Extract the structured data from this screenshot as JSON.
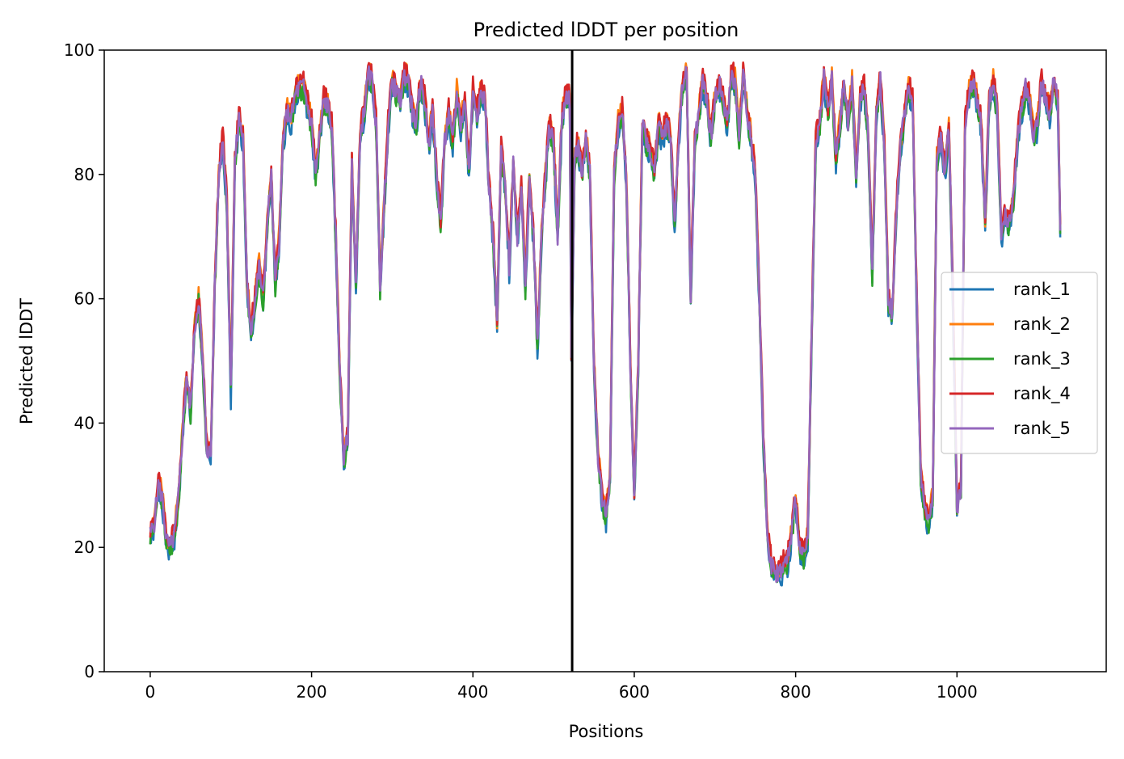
{
  "chart_data": {
    "type": "line",
    "title": "Predicted lDDT per position",
    "xlabel": "Positions",
    "ylabel": "Predicted lDDT",
    "xlim": [
      -57,
      1185
    ],
    "ylim": [
      0,
      100
    ],
    "xticks": [
      0,
      200,
      400,
      600,
      800,
      1000
    ],
    "yticks": [
      0,
      20,
      40,
      60,
      80,
      100
    ],
    "grid": false,
    "legend_position": "center-right",
    "vline_x": 523,
    "vline_color": "#000000",
    "series_style": "line",
    "series": [
      {
        "name": "rank_1",
        "color": "#1f77b4",
        "offset": -1.2,
        "seed": 1
      },
      {
        "name": "rank_2",
        "color": "#ff7f0e",
        "offset": 0.8,
        "seed": 2
      },
      {
        "name": "rank_3",
        "color": "#2ca02c",
        "offset": -0.6,
        "seed": 3
      },
      {
        "name": "rank_4",
        "color": "#d62728",
        "offset": 1.0,
        "seed": 4
      },
      {
        "name": "rank_5",
        "color": "#9467bd",
        "offset": 0.0,
        "seed": 5
      }
    ],
    "base_profile": [
      [
        0,
        22
      ],
      [
        5,
        24
      ],
      [
        10,
        30
      ],
      [
        15,
        28
      ],
      [
        20,
        21
      ],
      [
        25,
        20
      ],
      [
        30,
        22
      ],
      [
        35,
        28
      ],
      [
        40,
        38
      ],
      [
        45,
        48
      ],
      [
        50,
        42
      ],
      [
        55,
        55
      ],
      [
        60,
        60
      ],
      [
        65,
        50
      ],
      [
        70,
        36
      ],
      [
        75,
        35
      ],
      [
        80,
        62
      ],
      [
        85,
        80
      ],
      [
        90,
        86
      ],
      [
        95,
        75
      ],
      [
        100,
        45
      ],
      [
        105,
        82
      ],
      [
        110,
        89
      ],
      [
        115,
        86
      ],
      [
        120,
        62
      ],
      [
        125,
        55
      ],
      [
        130,
        60
      ],
      [
        135,
        65
      ],
      [
        140,
        60
      ],
      [
        145,
        72
      ],
      [
        150,
        80
      ],
      [
        155,
        62
      ],
      [
        160,
        70
      ],
      [
        165,
        86
      ],
      [
        170,
        90
      ],
      [
        175,
        89
      ],
      [
        180,
        93
      ],
      [
        185,
        94
      ],
      [
        190,
        94
      ],
      [
        195,
        91
      ],
      [
        200,
        88
      ],
      [
        205,
        80
      ],
      [
        210,
        86
      ],
      [
        215,
        92
      ],
      [
        220,
        91
      ],
      [
        225,
        88
      ],
      [
        230,
        70
      ],
      [
        235,
        48
      ],
      [
        240,
        34
      ],
      [
        245,
        38
      ],
      [
        250,
        82
      ],
      [
        255,
        62
      ],
      [
        260,
        86
      ],
      [
        265,
        90
      ],
      [
        270,
        96
      ],
      [
        275,
        95
      ],
      [
        280,
        88
      ],
      [
        285,
        62
      ],
      [
        290,
        75
      ],
      [
        295,
        88
      ],
      [
        300,
        95
      ],
      [
        305,
        93
      ],
      [
        310,
        92
      ],
      [
        315,
        96
      ],
      [
        320,
        95
      ],
      [
        325,
        90
      ],
      [
        330,
        88
      ],
      [
        335,
        95
      ],
      [
        340,
        92
      ],
      [
        345,
        85
      ],
      [
        350,
        90
      ],
      [
        355,
        80
      ],
      [
        360,
        72
      ],
      [
        365,
        85
      ],
      [
        370,
        90
      ],
      [
        375,
        85
      ],
      [
        380,
        93
      ],
      [
        385,
        88
      ],
      [
        390,
        92
      ],
      [
        395,
        80
      ],
      [
        400,
        94
      ],
      [
        405,
        90
      ],
      [
        410,
        93
      ],
      [
        415,
        92
      ],
      [
        420,
        78
      ],
      [
        425,
        70
      ],
      [
        430,
        56
      ],
      [
        435,
        84
      ],
      [
        440,
        78
      ],
      [
        445,
        65
      ],
      [
        450,
        82
      ],
      [
        455,
        70
      ],
      [
        460,
        78
      ],
      [
        465,
        62
      ],
      [
        470,
        80
      ],
      [
        475,
        70
      ],
      [
        480,
        52
      ],
      [
        485,
        70
      ],
      [
        490,
        80
      ],
      [
        495,
        88
      ],
      [
        500,
        85
      ],
      [
        505,
        70
      ],
      [
        510,
        88
      ],
      [
        515,
        93
      ],
      [
        520,
        92
      ],
      [
        522,
        50
      ],
      [
        526,
        82
      ],
      [
        530,
        85
      ],
      [
        535,
        80
      ],
      [
        540,
        86
      ],
      [
        545,
        80
      ],
      [
        550,
        50
      ],
      [
        555,
        35
      ],
      [
        560,
        28
      ],
      [
        565,
        25
      ],
      [
        570,
        32
      ],
      [
        575,
        80
      ],
      [
        580,
        88
      ],
      [
        585,
        90
      ],
      [
        590,
        80
      ],
      [
        595,
        50
      ],
      [
        600,
        28
      ],
      [
        605,
        50
      ],
      [
        610,
        88
      ],
      [
        615,
        85
      ],
      [
        620,
        84
      ],
      [
        625,
        80
      ],
      [
        630,
        88
      ],
      [
        635,
        86
      ],
      [
        640,
        88
      ],
      [
        645,
        86
      ],
      [
        650,
        72
      ],
      [
        655,
        86
      ],
      [
        660,
        95
      ],
      [
        665,
        96
      ],
      [
        670,
        60
      ],
      [
        675,
        85
      ],
      [
        680,
        90
      ],
      [
        685,
        95
      ],
      [
        690,
        92
      ],
      [
        695,
        86
      ],
      [
        700,
        92
      ],
      [
        705,
        95
      ],
      [
        710,
        92
      ],
      [
        715,
        88
      ],
      [
        720,
        96
      ],
      [
        725,
        95
      ],
      [
        730,
        86
      ],
      [
        735,
        96
      ],
      [
        740,
        90
      ],
      [
        745,
        86
      ],
      [
        750,
        80
      ],
      [
        755,
        60
      ],
      [
        760,
        38
      ],
      [
        765,
        22
      ],
      [
        770,
        17
      ],
      [
        775,
        16
      ],
      [
        780,
        16
      ],
      [
        785,
        17
      ],
      [
        790,
        18
      ],
      [
        795,
        22
      ],
      [
        800,
        28
      ],
      [
        805,
        20
      ],
      [
        810,
        18
      ],
      [
        815,
        22
      ],
      [
        820,
        55
      ],
      [
        825,
        86
      ],
      [
        830,
        88
      ],
      [
        835,
        96
      ],
      [
        840,
        90
      ],
      [
        845,
        95
      ],
      [
        850,
        82
      ],
      [
        855,
        88
      ],
      [
        860,
        95
      ],
      [
        865,
        88
      ],
      [
        870,
        95
      ],
      [
        875,
        80
      ],
      [
        880,
        92
      ],
      [
        885,
        94
      ],
      [
        890,
        86
      ],
      [
        895,
        64
      ],
      [
        900,
        90
      ],
      [
        905,
        95
      ],
      [
        910,
        85
      ],
      [
        915,
        60
      ],
      [
        920,
        58
      ],
      [
        925,
        75
      ],
      [
        930,
        84
      ],
      [
        935,
        90
      ],
      [
        940,
        94
      ],
      [
        945,
        92
      ],
      [
        950,
        60
      ],
      [
        955,
        32
      ],
      [
        960,
        26
      ],
      [
        965,
        24
      ],
      [
        970,
        28
      ],
      [
        975,
        82
      ],
      [
        980,
        86
      ],
      [
        985,
        80
      ],
      [
        990,
        88
      ],
      [
        995,
        60
      ],
      [
        1000,
        26
      ],
      [
        1005,
        30
      ],
      [
        1010,
        88
      ],
      [
        1015,
        93
      ],
      [
        1020,
        95
      ],
      [
        1025,
        92
      ],
      [
        1030,
        88
      ],
      [
        1035,
        72
      ],
      [
        1040,
        92
      ],
      [
        1045,
        95
      ],
      [
        1050,
        90
      ],
      [
        1055,
        70
      ],
      [
        1060,
        74
      ],
      [
        1065,
        72
      ],
      [
        1070,
        76
      ],
      [
        1075,
        86
      ],
      [
        1080,
        90
      ],
      [
        1085,
        94
      ],
      [
        1090,
        92
      ],
      [
        1095,
        86
      ],
      [
        1100,
        88
      ],
      [
        1105,
        95
      ],
      [
        1110,
        92
      ],
      [
        1115,
        90
      ],
      [
        1120,
        95
      ],
      [
        1125,
        92
      ],
      [
        1128,
        72
      ]
    ]
  }
}
